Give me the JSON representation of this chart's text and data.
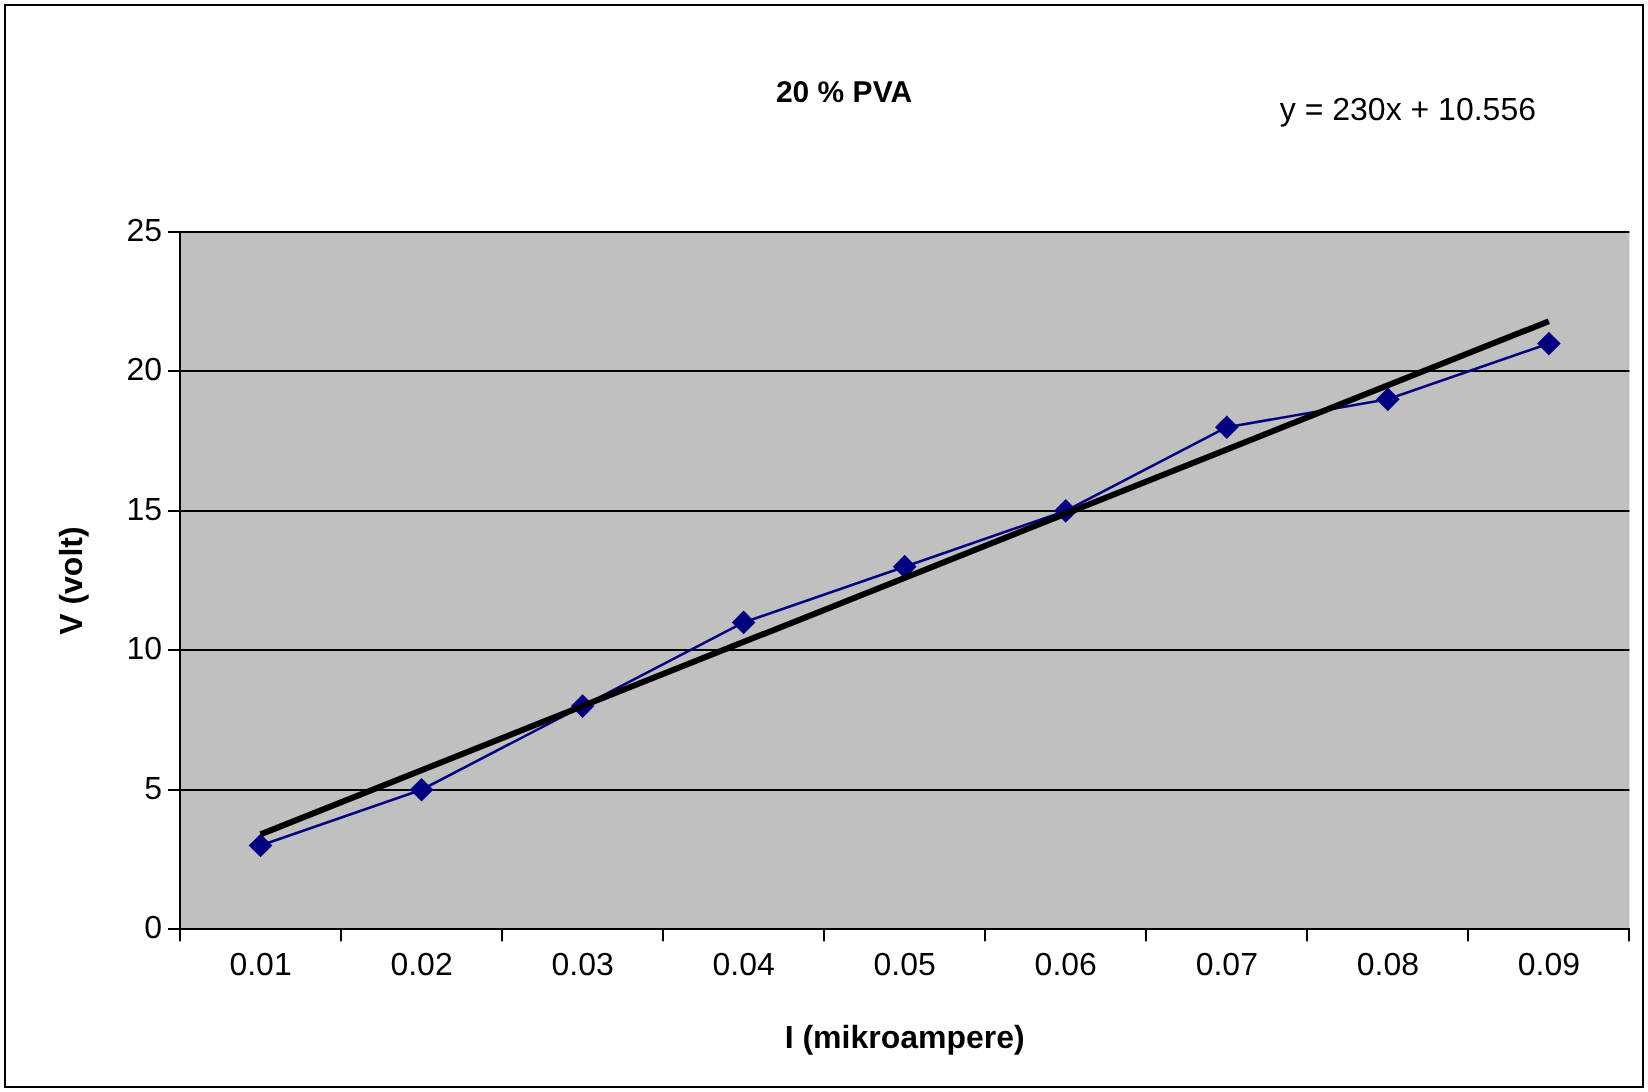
{
  "chart_data": {
    "type": "line",
    "title": "20 % PVA",
    "xlabel": "I (mikroampere)",
    "ylabel": "V (volt)",
    "categories": [
      "0.01",
      "0.02",
      "0.03",
      "0.04",
      "0.05",
      "0.06",
      "0.07",
      "0.08",
      "0.09"
    ],
    "series": [
      {
        "color": "#000080",
        "values": [
          3,
          5,
          8,
          11,
          13,
          15,
          18,
          19,
          21
        ],
        "marker": "diamond"
      },
      {
        "type": "line",
        "color": "#000000",
        "x": [
          "0.01",
          "0.09"
        ],
        "values": [
          3.4,
          21.8
        ],
        "marker": "none"
      }
    ],
    "ylim": [
      0,
      25
    ],
    "yticks": [
      0,
      5,
      10,
      15,
      20,
      25
    ],
    "grid": "y",
    "legend": false,
    "annotations": [
      "y = 230x + 10.556"
    ]
  }
}
